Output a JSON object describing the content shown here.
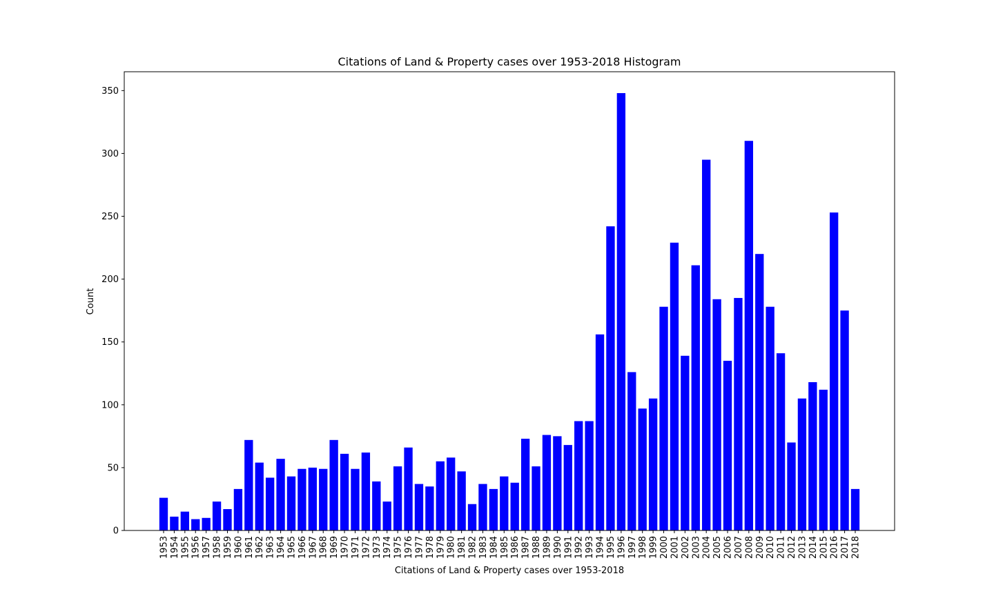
{
  "chart_data": {
    "type": "bar",
    "title": "Citations of Land & Property cases over 1953-2018 Histogram",
    "xlabel": "Citations of Land & Property cases over 1953-2018",
    "ylabel": "Count",
    "ylim": [
      0,
      365
    ],
    "yticks": [
      0,
      50,
      100,
      150,
      200,
      250,
      300,
      350
    ],
    "bar_color": "#0000ff",
    "grid": false,
    "legend": "none",
    "categories": [
      "1953",
      "1954",
      "1955",
      "1956",
      "1957",
      "1958",
      "1959",
      "1960",
      "1961",
      "1962",
      "1963",
      "1964",
      "1965",
      "1966",
      "1967",
      "1968",
      "1969",
      "1970",
      "1971",
      "1972",
      "1973",
      "1974",
      "1975",
      "1976",
      "1977",
      "1978",
      "1979",
      "1980",
      "1981",
      "1982",
      "1983",
      "1984",
      "1985",
      "1986",
      "1987",
      "1988",
      "1989",
      "1990",
      "1991",
      "1992",
      "1993",
      "1994",
      "1995",
      "1996",
      "1997",
      "1998",
      "1999",
      "2000",
      "2001",
      "2002",
      "2003",
      "2004",
      "2005",
      "2006",
      "2007",
      "2008",
      "2009",
      "2010",
      "2011",
      "2012",
      "2013",
      "2014",
      "2015",
      "2016",
      "2017",
      "2018"
    ],
    "values": [
      26,
      11,
      15,
      9,
      10,
      23,
      17,
      33,
      72,
      54,
      42,
      57,
      43,
      49,
      50,
      49,
      72,
      61,
      49,
      62,
      39,
      23,
      51,
      66,
      37,
      35,
      55,
      58,
      47,
      21,
      37,
      33,
      43,
      38,
      73,
      51,
      76,
      75,
      68,
      87,
      87,
      156,
      242,
      348,
      126,
      97,
      105,
      178,
      229,
      139,
      211,
      295,
      184,
      135,
      185,
      310,
      220,
      178,
      141,
      70,
      105,
      118,
      112,
      253,
      175,
      33
    ]
  }
}
